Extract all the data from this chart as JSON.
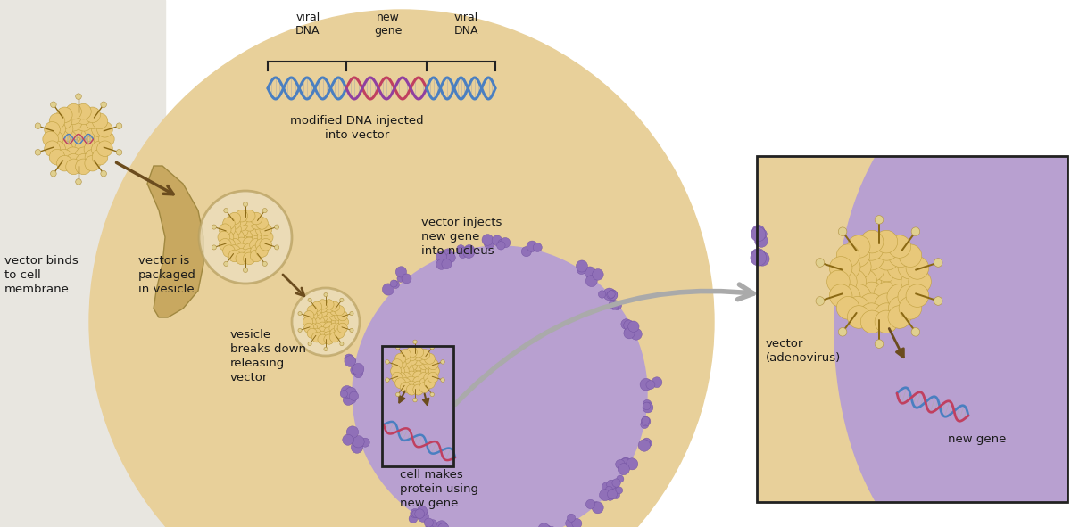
{
  "bg_left_color": "#e8e6e0",
  "bg_cell_color": "#e8d09a",
  "bg_nucleus_color": "#b8a0d0",
  "text_color": "#1a1a1a",
  "arrow_color": "#6b4c1e",
  "virus_body_color": "#e8c87a",
  "virus_capsomer_color": "#d4b060",
  "virus_spike_color": "#8B6914",
  "virus_knob_color": "#d8c080",
  "dna_blue_color": "#4a7fc1",
  "dna_red_color": "#c04060",
  "dna_purple_color": "#9040a0",
  "bracket_color": "#222222",
  "zoom_box_color": "#222222",
  "zoom_bg_color": "#e8d09a",
  "zoom_nucleus_color": "#b8a0d0",
  "label_virus_binds": "vector binds\nto cell\nmembrane",
  "label_packaged": "vector is\npackaged\nin vesicle",
  "label_breaks_down": "vesicle\nbreaks down\nreleasing\nvector",
  "label_modified_dna": "modified DNA injected\ninto vector",
  "label_injects": "vector injects\nnew gene\ninto nucleus",
  "label_makes_protein": "cell makes\nprotein using\nnew gene",
  "label_viral_dna_left": "viral\nDNA",
  "label_new_gene": "new\ngene",
  "label_viral_dna_right": "viral\nDNA",
  "label_vector_adeno": "vector\n(adenovirus)",
  "label_new_gene_zoom": "new gene",
  "figsize": [
    12.0,
    5.91
  ],
  "dpi": 100
}
